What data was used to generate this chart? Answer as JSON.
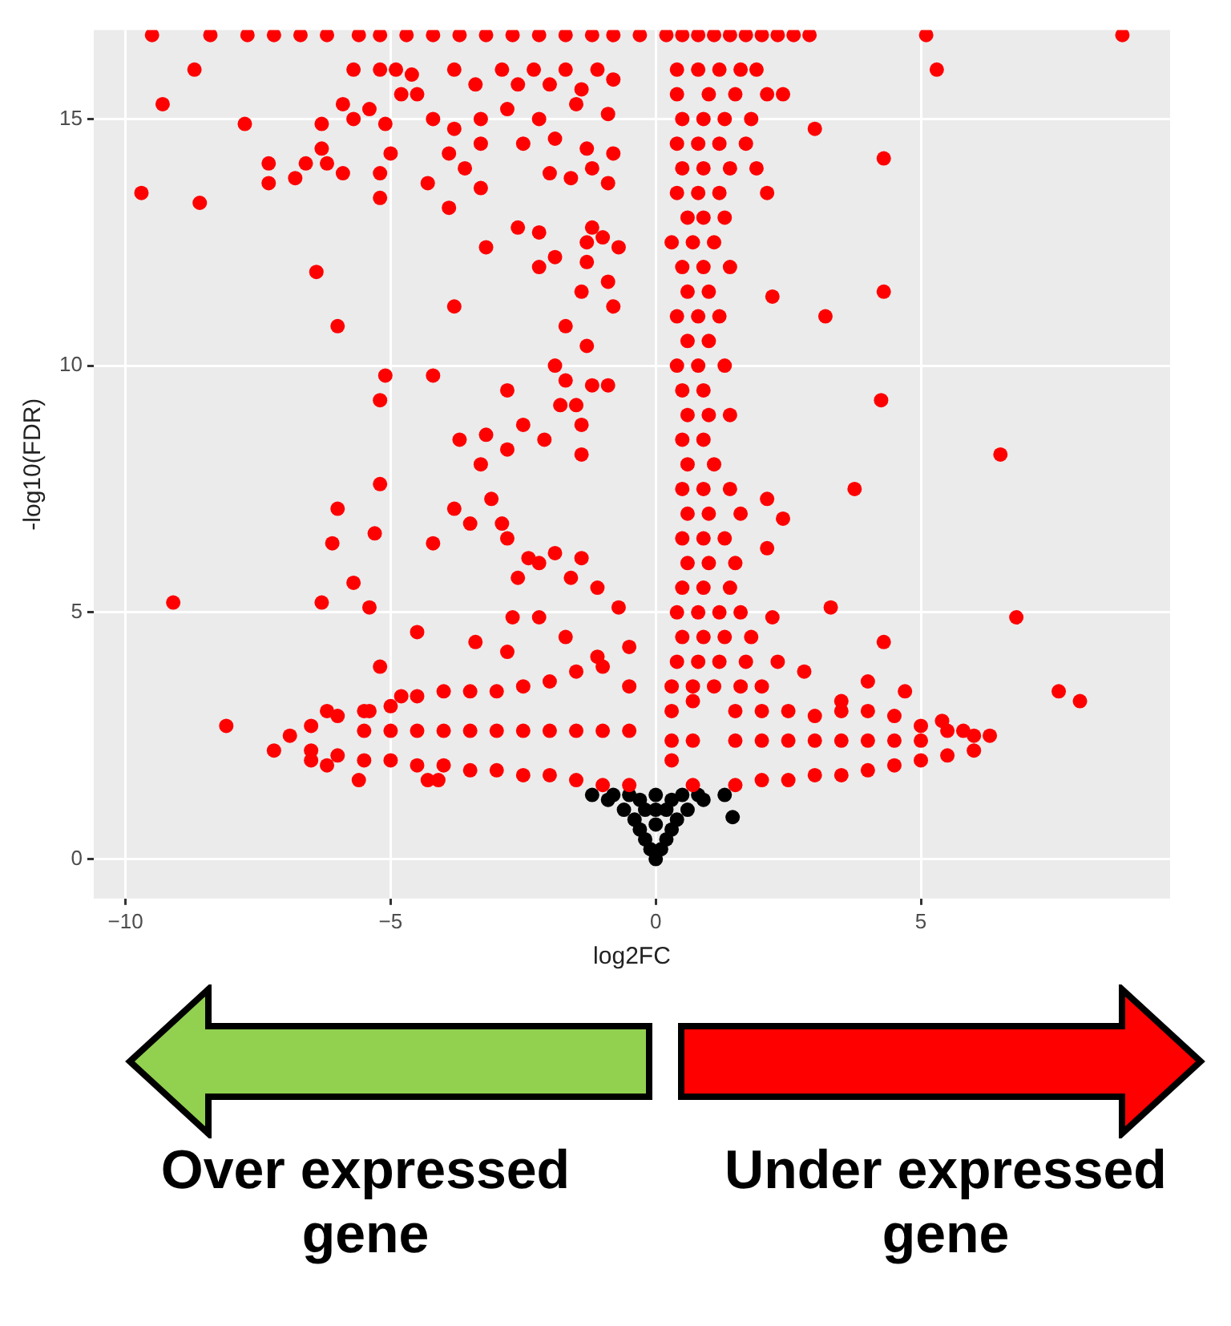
{
  "chart_data": {
    "type": "scatter",
    "xlabel": "log2FC",
    "ylabel": "-log10(FDR)",
    "xlim": [
      -10.6,
      9.7
    ],
    "xticks": [
      -10,
      -5,
      0,
      5
    ],
    "ylim": [
      -0.8,
      16.8
    ],
    "yticks": [
      0,
      5,
      10,
      15
    ],
    "grid": true,
    "legend": false,
    "marker": "circle",
    "annotations": [
      "Over expressed gene",
      "Under expressed gene"
    ],
    "series": [
      {
        "color": "#ff0000",
        "x": [
          -9.5,
          -8.4,
          -7.7,
          -7.2,
          -6.7,
          -6.2,
          -5.6,
          -5.2,
          -4.7,
          -4.2,
          -3.7,
          -3.2,
          -2.7,
          -2.2,
          -1.7,
          -1.2,
          -0.8,
          -0.3,
          0.2,
          0.5,
          0.8,
          1.1,
          1.4,
          1.7,
          2.0,
          2.3,
          2.6,
          2.9,
          5.1,
          8.8,
          -9.7,
          -9.3,
          -8.7,
          -8.6,
          -7.75,
          -7.3,
          -7.3,
          -6.8,
          -6.6,
          -6.3,
          -6.3,
          -6.2,
          -5.9,
          -5.9,
          -5.7,
          -5.4,
          -5.7,
          -5.2,
          -4.9,
          -4.6,
          -4.8,
          -4.5,
          -5.1,
          -5.0,
          -5.2,
          -5.2,
          -4.3,
          -3.9,
          -3.9,
          -3.8,
          -3.4,
          -3.6,
          -3.3,
          -3.3,
          -3.3,
          -4.2,
          -3.8,
          -2.9,
          -2.6,
          -2.3,
          -2.0,
          -1.7,
          -1.4,
          -1.1,
          -0.8,
          -2.8,
          -2.2,
          -1.5,
          -0.9,
          -2.5,
          -1.9,
          -1.3,
          -0.8,
          -2.0,
          -1.2,
          -0.9,
          -1.6,
          -6.4,
          -6.0,
          -3.8,
          -3.2,
          -2.6,
          -2.2,
          -1.2,
          -1.3,
          -1.0,
          -0.7,
          -1.9,
          -2.2,
          -1.3,
          -0.9,
          -1.4,
          -0.8,
          -1.7,
          -1.3,
          -1.9,
          -5.1,
          -4.2,
          -5.2,
          -2.8,
          -1.7,
          -1.2,
          -0.9,
          -1.8,
          -1.5,
          -3.7,
          -3.2,
          -2.5,
          -2.8,
          -2.1,
          -1.4,
          -1.4,
          -3.3,
          -9.1,
          -8.1,
          -5.2,
          -6.0,
          -6.1,
          -5.7,
          -6.3,
          -5.4,
          -5.3,
          -4.5,
          -4.2,
          -3.8,
          -3.5,
          -3.1,
          -2.9,
          -2.8,
          -2.6,
          -2.7,
          -2.2,
          -2.4,
          -2.2,
          -1.9,
          -1.6,
          -1.4,
          -1.1,
          -0.7,
          -1.7,
          -1.1,
          -0.5,
          -3.4,
          -2.8,
          -5.2,
          -4.8,
          -5.4,
          -6.2,
          -6.9,
          -7.2,
          -6.5,
          -6.2,
          -5.6,
          -4.3,
          -4.1,
          6.5,
          3.75,
          2.1,
          2.4,
          2.1,
          3.3,
          2.2,
          4.3,
          6.8,
          7.6,
          8.0,
          4.0,
          4.7,
          3.5,
          2.8,
          6.3,
          5.8,
          5.4,
          5.3,
          3.0,
          4.3,
          4.3,
          3.2,
          2.2,
          4.25,
          0.4,
          0.8,
          1.2,
          1.6,
          1.9,
          0.4,
          1.0,
          1.5,
          2.1,
          2.4,
          0.5,
          0.9,
          1.3,
          1.8,
          0.4,
          0.8,
          1.2,
          1.7,
          0.5,
          0.9,
          1.4,
          1.9,
          0.4,
          0.8,
          1.2,
          2.1,
          0.6,
          0.9,
          1.3,
          0.3,
          0.7,
          1.1,
          0.5,
          0.9,
          1.4,
          0.6,
          1.0,
          0.4,
          0.8,
          1.2,
          0.6,
          1.0,
          0.4,
          0.8,
          1.3,
          0.5,
          0.9,
          0.6,
          1.0,
          1.4,
          0.5,
          0.9,
          0.6,
          1.1,
          0.5,
          0.9,
          1.4,
          0.6,
          1.0,
          1.6,
          0.5,
          0.9,
          1.3,
          0.6,
          1.0,
          1.5,
          0.5,
          0.9,
          1.4,
          0.4,
          0.8,
          1.2,
          1.6,
          0.5,
          0.9,
          1.3,
          1.8,
          0.4,
          0.8,
          1.2,
          1.7,
          2.3,
          0.3,
          0.7,
          1.1,
          1.6,
          2.0,
          -6.5,
          -6.5,
          -6,
          -6,
          -5.5,
          -5.5,
          -5.5,
          -5,
          -5,
          -5,
          -4.5,
          -4.5,
          -4.5,
          -4,
          -4,
          -4,
          -3.5,
          -3.5,
          -3.5,
          -3,
          -3,
          -3,
          -2.5,
          -2.5,
          -2.5,
          -2,
          -2,
          -2,
          -1.5,
          -1.5,
          -1.5,
          -1,
          -1,
          -1,
          -0.5,
          -0.5,
          -0.5,
          0.3,
          0.3,
          0.3,
          0.7,
          0.7,
          0.7,
          1.5,
          1.5,
          1.5,
          2,
          2,
          2,
          2.5,
          2.5,
          2.5,
          3,
          3,
          3,
          3.5,
          3.5,
          3.5,
          4,
          4,
          4,
          4.5,
          4.5,
          4.5,
          5,
          5,
          5,
          5.5,
          5.5,
          6,
          6
        ],
        "values": [
          16.7,
          16.7,
          16.7,
          16.7,
          16.7,
          16.7,
          16.7,
          16.7,
          16.7,
          16.7,
          16.7,
          16.7,
          16.7,
          16.7,
          16.7,
          16.7,
          16.7,
          16.7,
          16.7,
          16.7,
          16.7,
          16.7,
          16.7,
          16.7,
          16.7,
          16.7,
          16.7,
          16.7,
          16.7,
          16.7,
          13.5,
          15.3,
          16.0,
          13.3,
          14.9,
          14.1,
          13.7,
          13.8,
          14.1,
          14.9,
          14.4,
          14.1,
          13.9,
          15.3,
          15.0,
          15.2,
          16.0,
          16.0,
          16.0,
          15.9,
          15.5,
          15.5,
          14.9,
          14.3,
          13.9,
          13.4,
          13.7,
          13.2,
          14.3,
          16.0,
          15.7,
          14.0,
          14.5,
          13.6,
          15.0,
          15.0,
          14.8,
          16.0,
          15.7,
          16.0,
          15.7,
          16.0,
          15.6,
          16.0,
          15.8,
          15.2,
          15.0,
          15.3,
          15.1,
          14.5,
          14.6,
          14.4,
          14.3,
          13.9,
          14.0,
          13.7,
          13.8,
          11.9,
          10.8,
          11.2,
          12.4,
          12.8,
          12.7,
          12.8,
          12.5,
          12.6,
          12.4,
          12.2,
          12.0,
          12.1,
          11.7,
          11.5,
          11.2,
          10.8,
          10.4,
          10.0,
          9.8,
          9.8,
          9.3,
          9.5,
          9.7,
          9.6,
          9.6,
          9.2,
          9.2,
          8.5,
          8.6,
          8.8,
          8.3,
          8.5,
          8.8,
          8.2,
          8.0,
          5.2,
          2.7,
          7.6,
          7.1,
          6.4,
          5.6,
          5.2,
          5.1,
          6.6,
          4.6,
          6.4,
          7.1,
          6.8,
          7.3,
          6.8,
          6.5,
          5.7,
          4.9,
          4.9,
          6.1,
          6.0,
          6.2,
          5.7,
          6.1,
          5.5,
          5.1,
          4.5,
          4.1,
          4.3,
          4.4,
          4.2,
          3.9,
          3.3,
          3.0,
          3.0,
          2.5,
          2.2,
          2.0,
          1.9,
          1.6,
          1.6,
          1.6,
          8.2,
          7.5,
          7.3,
          6.9,
          6.3,
          5.1,
          4.9,
          4.4,
          4.9,
          3.4,
          3.2,
          3.6,
          3.4,
          3.2,
          3.8,
          2.5,
          2.6,
          2.8,
          16.0,
          14.8,
          14.2,
          11.5,
          11.0,
          11.4,
          9.3,
          16,
          16,
          16,
          16,
          16,
          15.5,
          15.5,
          15.5,
          15.5,
          15.5,
          15,
          15,
          15,
          15,
          14.5,
          14.5,
          14.5,
          14.5,
          14,
          14,
          14,
          14,
          13.5,
          13.5,
          13.5,
          13.5,
          13,
          13,
          13,
          12.5,
          12.5,
          12.5,
          12,
          12,
          12,
          11.5,
          11.5,
          11,
          11,
          11,
          10.5,
          10.5,
          10,
          10,
          10,
          9.5,
          9.5,
          9,
          9,
          9,
          8.5,
          8.5,
          8,
          8,
          7.5,
          7.5,
          7.5,
          7,
          7,
          7,
          6.5,
          6.5,
          6.5,
          6,
          6,
          6,
          5.5,
          5.5,
          5.5,
          5,
          5,
          5,
          5,
          4.5,
          4.5,
          4.5,
          4.5,
          4,
          4,
          4,
          4,
          4,
          3.5,
          3.5,
          3.5,
          3.5,
          3.5,
          2.2,
          2.7,
          2.1,
          2.9,
          2.0,
          2.6,
          3.0,
          2.0,
          2.6,
          3.1,
          1.9,
          2.6,
          3.3,
          1.9,
          2.6,
          3.4,
          1.8,
          2.6,
          3.4,
          1.8,
          2.6,
          3.4,
          1.7,
          2.6,
          3.5,
          1.7,
          2.6,
          3.6,
          1.6,
          2.6,
          3.8,
          1.5,
          2.6,
          3.9,
          1.5,
          2.6,
          3.5,
          2.0,
          2.4,
          3.0,
          1.5,
          2.4,
          3.2,
          1.5,
          2.4,
          3.0,
          1.6,
          2.4,
          3.0,
          1.6,
          2.4,
          3.0,
          1.7,
          2.4,
          2.9,
          1.7,
          2.4,
          3.0,
          1.8,
          2.4,
          3.0,
          1.9,
          2.4,
          2.9,
          2.0,
          2.4,
          2.7,
          2.1,
          2.6,
          2.2,
          2.5
        ]
      },
      {
        "color": "#000000",
        "x": [
          0,
          -0.1,
          0.1,
          -0.2,
          0.2,
          -0.3,
          0.3,
          -0.4,
          0.4,
          -0.6,
          0.6,
          -0.9,
          0.9,
          -1.2,
          1.3,
          0,
          -0.5,
          0.5,
          0,
          0,
          -0.2,
          0.2,
          1.45,
          -0.8,
          0.8,
          -0.3,
          0.3
        ],
        "values": [
          0,
          0.2,
          0.2,
          0.4,
          0.4,
          0.6,
          0.6,
          0.8,
          0.8,
          1.0,
          1.0,
          1.2,
          1.2,
          1.3,
          1.3,
          1.3,
          1.3,
          1.3,
          0.7,
          1.0,
          1.0,
          1.0,
          0.85,
          1.3,
          1.3,
          1.2,
          1.2
        ]
      }
    ]
  }
}
